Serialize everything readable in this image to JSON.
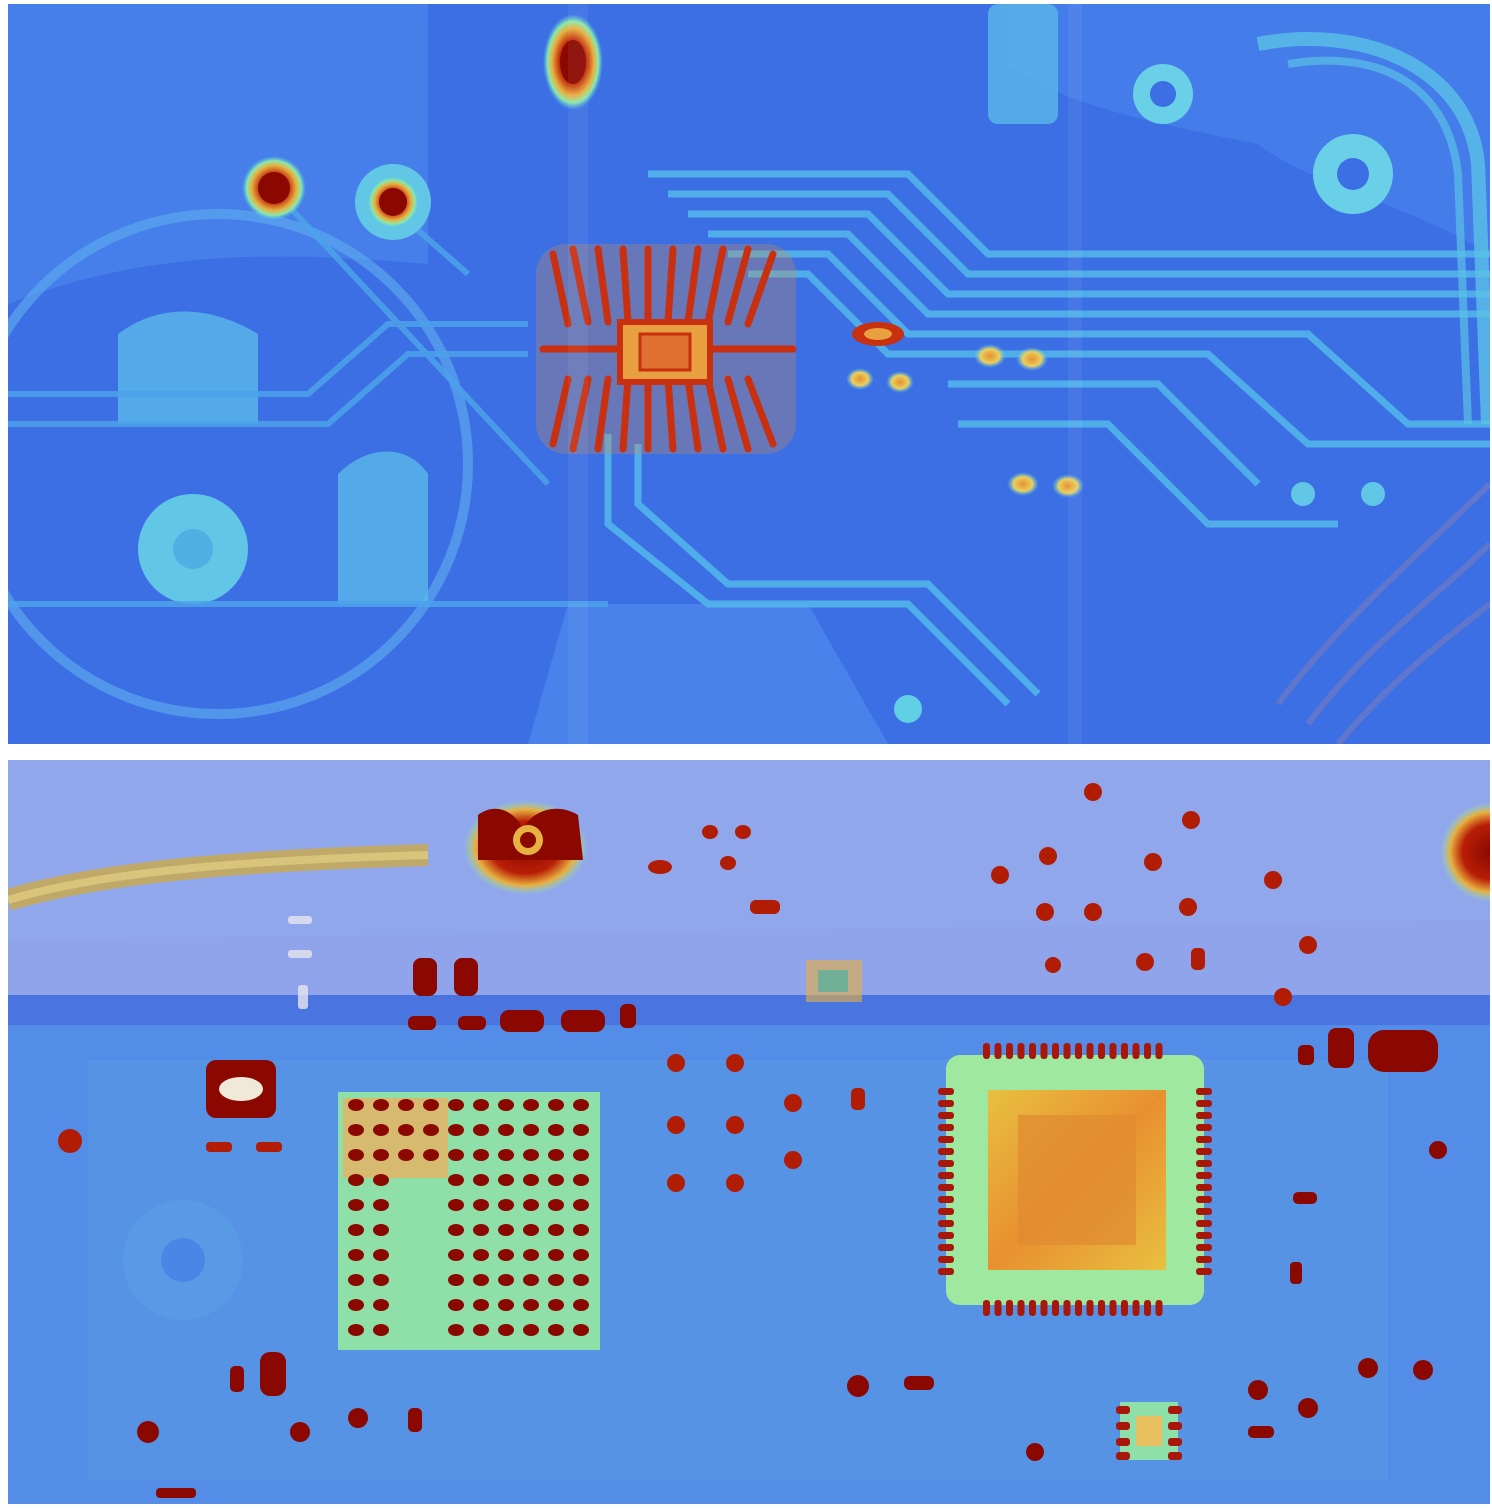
{
  "figure": {
    "panels": [
      {
        "name": "thermal-map-pcb-top"
      },
      {
        "name": "thermal-map-pcb-bottom"
      }
    ],
    "colormap": [
      "#2f5fe0",
      "#4a86ec",
      "#55c8e8",
      "#8be8a8",
      "#e8e060",
      "#e89030",
      "#c83010",
      "#8a0a00"
    ],
    "colors": {
      "background": "#ffffff",
      "board_base": "#3d72e6",
      "trace": "#4aa8ea",
      "warm": "#e8d050",
      "hot": "#c42a0c",
      "hottest": "#8a0800"
    }
  }
}
